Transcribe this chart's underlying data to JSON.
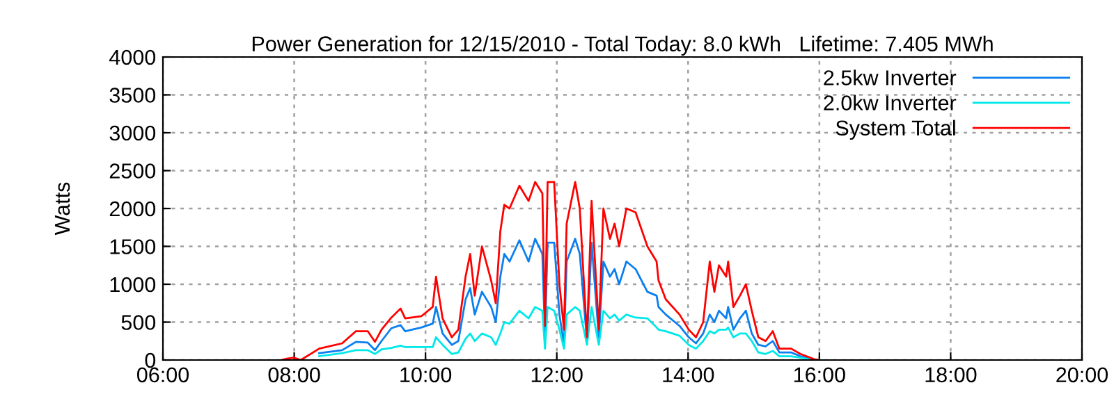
{
  "chart_data": {
    "type": "line",
    "title": "Power Generation for 12/15/2010 - Total Today: 8.0 kWh   Lifetime: 7.405 MWh",
    "ylabel": "Watts",
    "x": [
      7.8,
      7.9,
      8.0,
      8.1,
      8.38,
      8.73,
      8.94,
      9.12,
      9.23,
      9.33,
      9.48,
      9.62,
      9.69,
      9.94,
      10.11,
      10.16,
      10.26,
      10.4,
      10.5,
      10.61,
      10.68,
      10.75,
      10.86,
      11.0,
      11.07,
      11.14,
      11.2,
      11.28,
      11.43,
      11.57,
      11.67,
      11.78,
      11.82,
      11.86,
      11.96,
      12.04,
      12.11,
      12.15,
      12.28,
      12.35,
      12.46,
      12.53,
      12.64,
      12.71,
      12.81,
      12.88,
      12.95,
      13.06,
      13.2,
      13.38,
      13.52,
      13.55,
      13.66,
      13.87,
      14.01,
      14.12,
      14.23,
      14.33,
      14.4,
      14.47,
      14.58,
      14.61,
      14.69,
      14.79,
      14.88,
      14.97,
      15.07,
      15.18,
      15.29,
      15.39,
      15.57,
      15.71,
      15.92,
      16.0
    ],
    "series": [
      {
        "name": "2.5kw Inverter",
        "color": "#0a7ff0",
        "values": [
          null,
          null,
          null,
          null,
          90,
          130,
          240,
          230,
          130,
          250,
          420,
          460,
          380,
          430,
          480,
          700,
          350,
          200,
          250,
          800,
          950,
          600,
          900,
          700,
          500,
          1100,
          1400,
          1300,
          1580,
          1300,
          1600,
          1400,
          300,
          1550,
          1550,
          600,
          200,
          1300,
          1600,
          1400,
          250,
          1550,
          300,
          1300,
          1100,
          1200,
          1000,
          1300,
          1200,
          900,
          850,
          700,
          600,
          450,
          300,
          220,
          350,
          600,
          500,
          650,
          550,
          700,
          400,
          550,
          650,
          350,
          200,
          180,
          250,
          100,
          100,
          50,
          0,
          0
        ]
      },
      {
        "name": "2.0kw Inverter",
        "color": "#00e8e8",
        "values": [
          null,
          null,
          null,
          null,
          50,
          90,
          130,
          130,
          80,
          140,
          160,
          190,
          170,
          170,
          170,
          300,
          200,
          80,
          100,
          280,
          350,
          250,
          350,
          300,
          200,
          350,
          500,
          480,
          650,
          550,
          700,
          650,
          150,
          700,
          650,
          400,
          150,
          600,
          700,
          650,
          200,
          700,
          200,
          650,
          550,
          600,
          520,
          600,
          560,
          550,
          430,
          400,
          380,
          320,
          200,
          150,
          250,
          380,
          350,
          400,
          400,
          430,
          300,
          350,
          350,
          250,
          100,
          80,
          120,
          50,
          50,
          30,
          0,
          0
        ]
      },
      {
        "name": "System Total",
        "color": "#ff0000",
        "values": [
          0,
          20,
          30,
          0,
          150,
          220,
          380,
          380,
          240,
          400,
          560,
          680,
          550,
          580,
          700,
          1100,
          550,
          300,
          400,
          1100,
          1400,
          850,
          1500,
          1050,
          750,
          1700,
          2050,
          2000,
          2300,
          2100,
          2350,
          2200,
          450,
          2350,
          2350,
          1000,
          400,
          1800,
          2350,
          2000,
          300,
          2100,
          400,
          2000,
          1600,
          1800,
          1500,
          2000,
          1950,
          1500,
          1300,
          1050,
          800,
          600,
          400,
          300,
          500,
          1300,
          900,
          1250,
          1100,
          1300,
          700,
          850,
          1000,
          650,
          300,
          250,
          380,
          150,
          150,
          80,
          10,
          0
        ]
      }
    ],
    "xlim": [
      6,
      20
    ],
    "xticks": [
      {
        "value": 6,
        "label": "06:00"
      },
      {
        "value": 8,
        "label": "08:00"
      },
      {
        "value": 10,
        "label": "10:00"
      },
      {
        "value": 12,
        "label": "12:00"
      },
      {
        "value": 14,
        "label": "14:00"
      },
      {
        "value": 16,
        "label": "16:00"
      },
      {
        "value": 18,
        "label": "18:00"
      },
      {
        "value": 20,
        "label": "20:00"
      }
    ],
    "ylim": [
      0,
      4000
    ],
    "yticks": [
      0,
      500,
      1000,
      1500,
      2000,
      2500,
      3000,
      3500,
      4000
    ],
    "grid": true,
    "legend": "top right",
    "line_style": "solid"
  }
}
